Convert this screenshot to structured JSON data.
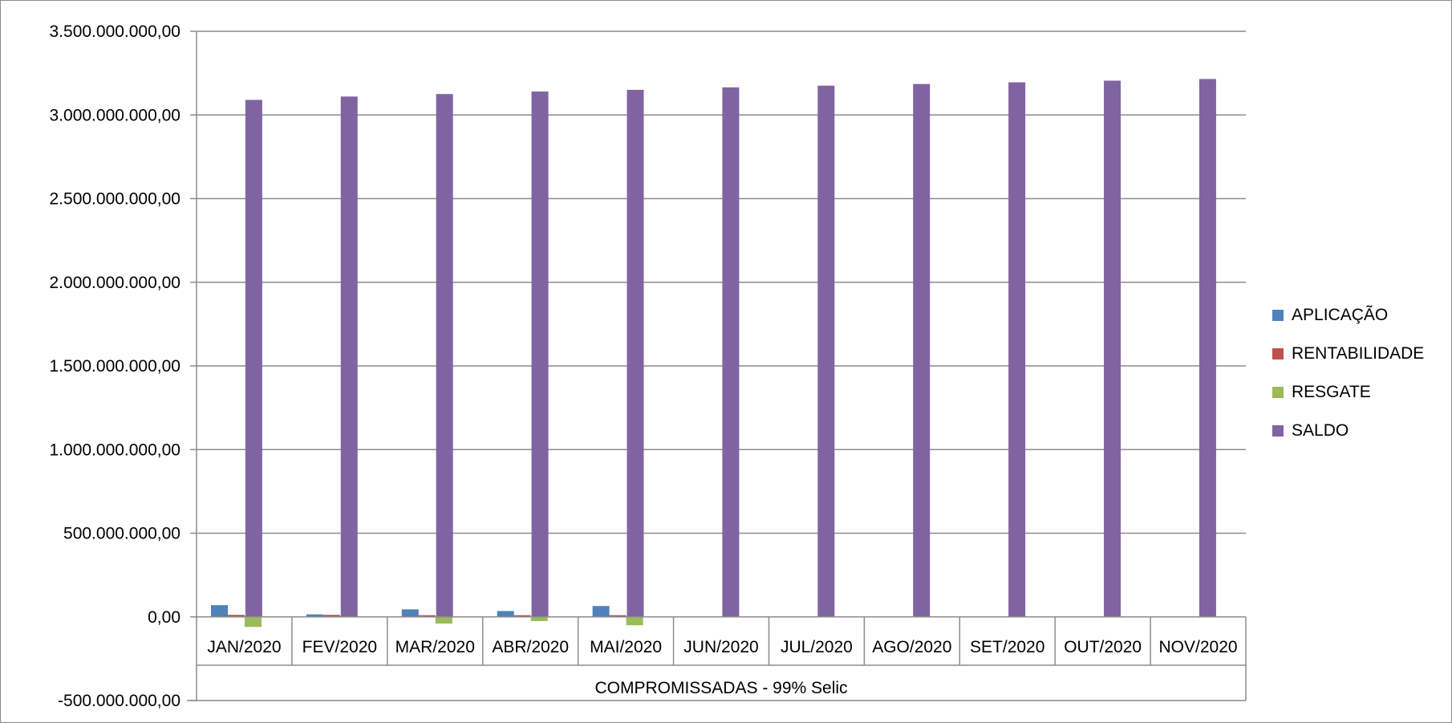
{
  "chart_data": {
    "type": "bar",
    "categories": [
      "JAN/2020",
      "FEV/2020",
      "MAR/2020",
      "ABR/2020",
      "MAI/2020",
      "JUN/2020",
      "JUL/2020",
      "AGO/2020",
      "SET/2020",
      "OUT/2020",
      "NOV/2020"
    ],
    "group_label": "COMPROMISSADAS - 99% Selic",
    "series": [
      {
        "name": "APLICAÇÃO",
        "color": "#4F81BD",
        "values": [
          70000000,
          15000000,
          45000000,
          35000000,
          65000000,
          0,
          0,
          0,
          0,
          0,
          0
        ]
      },
      {
        "name": "RENTABILIDADE",
        "color": "#C0504D",
        "values": [
          12000000,
          12000000,
          10000000,
          10000000,
          10000000,
          0,
          0,
          0,
          0,
          0,
          0
        ]
      },
      {
        "name": "RESGATE",
        "color": "#9BBB59",
        "values": [
          -60000000,
          0,
          -40000000,
          -25000000,
          -50000000,
          0,
          0,
          0,
          0,
          0,
          0
        ]
      },
      {
        "name": "SALDO",
        "color": "#8064A2",
        "values": [
          3090000000,
          3110000000,
          3125000000,
          3140000000,
          3150000000,
          3165000000,
          3175000000,
          3185000000,
          3195000000,
          3205000000,
          3215000000
        ]
      }
    ],
    "ylim": [
      -500000000,
      3500000000
    ],
    "y_ticks": [
      "-500.000.000,00",
      "0,00",
      "500.000.000,00",
      "1.000.000.000,00",
      "1.500.000.000,00",
      "2.000.000.000,00",
      "2.500.000.000,00",
      "3.000.000.000,00",
      "3.500.000.000,00"
    ],
    "y_tick_values": [
      -500000000,
      0,
      500000000,
      1000000000,
      1500000000,
      2000000000,
      2500000000,
      3000000000,
      3500000000
    ],
    "grid": true,
    "legend_position": "right",
    "title": "",
    "xlabel": "",
    "ylabel": ""
  }
}
